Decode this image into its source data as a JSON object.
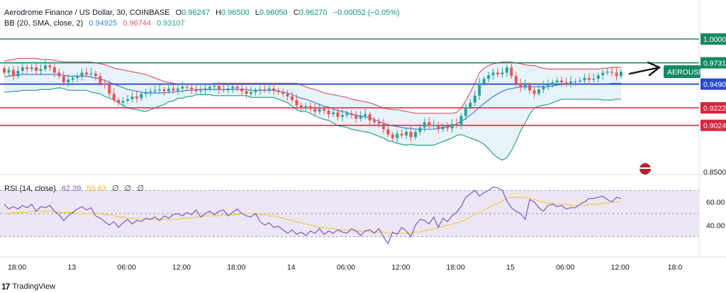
{
  "header": {
    "symbol_line": "Aerodrome Finance / US Dollar, 30, COINBASE",
    "ohlc": [
      {
        "k": "O",
        "v": "0.96247"
      },
      {
        "k": "H",
        "v": "0.96500"
      },
      {
        "k": "L",
        "v": "0.96050"
      },
      {
        "k": "C",
        "v": "0.96270"
      }
    ],
    "change": "−0.00052 (−0.05%)",
    "bb_label": "BB (20, SMA, close, 2)",
    "bb_values": [
      "0.94925",
      "0.96744",
      "0.93107"
    ],
    "rsi_label": "RSI (14, close)",
    "rsi_values": [
      "62.39",
      "59.63",
      "∅",
      "∅",
      "∅"
    ]
  },
  "watermark": "TradingView",
  "colors": {
    "up": "#26a69a",
    "down": "#ef5350",
    "bb_upper": "#e05c67",
    "bb_lower": "#23a48a",
    "bb_basis": "#3e7fd8",
    "bb_fill": "#e6f1f8",
    "resistance": "#138a63",
    "pivot": "#2b4acb",
    "support": "#d7263d",
    "rsi": "#7e57c2",
    "rsi_ma": "#f5c842",
    "rsi_band": "#ece6f6"
  },
  "chart_data": {
    "type": "candlestick",
    "price_axis": {
      "min": 0.85,
      "max": 1.0,
      "ticks": [
        "0.8500"
      ]
    },
    "time_axis": {
      "labels": [
        "18:00",
        "13",
        "06:00",
        "12:00",
        "18:00",
        "14",
        "06:00",
        "12:00",
        "18:00",
        "15",
        "06:00",
        "12:00",
        "18:0"
      ],
      "label_index": [
        0,
        12,
        24,
        36,
        48,
        60,
        72,
        84,
        96,
        108,
        120,
        132,
        144
      ]
    },
    "levels": [
      {
        "label": "1.0000",
        "value": 1.0,
        "role": "resistance"
      },
      {
        "label": "0.9731",
        "value": 0.9731,
        "role": "resistance"
      },
      {
        "label": "0.9490",
        "value": 0.949,
        "role": "pivot"
      },
      {
        "label": "0.9222",
        "value": 0.9222,
        "role": "support"
      },
      {
        "label": "0.9024",
        "value": 0.9024,
        "role": "support"
      }
    ],
    "annotation": "AEROUSD",
    "candles_close": [
      0.962,
      0.965,
      0.958,
      0.964,
      0.968,
      0.966,
      0.968,
      0.964,
      0.966,
      0.97,
      0.968,
      0.962,
      0.958,
      0.951,
      0.954,
      0.956,
      0.958,
      0.962,
      0.96,
      0.961,
      0.958,
      0.95,
      0.948,
      0.938,
      0.931,
      0.928,
      0.93,
      0.932,
      0.935,
      0.933,
      0.938,
      0.94,
      0.941,
      0.942,
      0.943,
      0.941,
      0.944,
      0.942,
      0.944,
      0.946,
      0.945,
      0.943,
      0.941,
      0.942,
      0.944,
      0.946,
      0.947,
      0.943,
      0.942,
      0.944,
      0.946,
      0.944,
      0.941,
      0.938,
      0.94,
      0.942,
      0.943,
      0.942,
      0.944,
      0.942,
      0.94,
      0.938,
      0.935,
      0.931,
      0.925,
      0.922,
      0.924,
      0.921,
      0.918,
      0.921,
      0.919,
      0.915,
      0.917,
      0.912,
      0.914,
      0.916,
      0.914,
      0.91,
      0.913,
      0.915,
      0.908,
      0.906,
      0.904,
      0.898,
      0.892,
      0.888,
      0.893,
      0.891,
      0.895,
      0.889,
      0.895,
      0.9,
      0.906,
      0.902,
      0.903,
      0.898,
      0.901,
      0.899,
      0.904,
      0.902,
      0.913,
      0.923,
      0.928,
      0.936,
      0.95,
      0.955,
      0.959,
      0.962,
      0.96,
      0.962,
      0.968,
      0.958,
      0.95,
      0.945,
      0.948,
      0.942,
      0.938,
      0.943,
      0.947,
      0.948,
      0.951,
      0.953,
      0.951,
      0.949,
      0.952,
      0.952,
      0.953,
      0.956,
      0.954,
      0.955,
      0.959,
      0.962,
      0.963,
      0.962,
      0.958,
      0.963
    ],
    "candles_open": [
      0.967,
      0.962,
      0.965,
      0.958,
      0.964,
      0.968,
      0.966,
      0.968,
      0.964,
      0.966,
      0.97,
      0.968,
      0.962,
      0.958,
      0.951,
      0.954,
      0.956,
      0.958,
      0.962,
      0.96,
      0.961,
      0.958,
      0.95,
      0.948,
      0.938,
      0.931,
      0.928,
      0.93,
      0.932,
      0.935,
      0.933,
      0.938,
      0.94,
      0.941,
      0.942,
      0.943,
      0.941,
      0.944,
      0.942,
      0.944,
      0.946,
      0.945,
      0.943,
      0.941,
      0.942,
      0.944,
      0.946,
      0.947,
      0.943,
      0.942,
      0.944,
      0.946,
      0.944,
      0.941,
      0.938,
      0.94,
      0.942,
      0.943,
      0.942,
      0.944,
      0.942,
      0.94,
      0.938,
      0.935,
      0.931,
      0.925,
      0.922,
      0.924,
      0.921,
      0.918,
      0.921,
      0.919,
      0.915,
      0.917,
      0.912,
      0.914,
      0.916,
      0.914,
      0.91,
      0.913,
      0.915,
      0.908,
      0.906,
      0.904,
      0.898,
      0.892,
      0.888,
      0.893,
      0.891,
      0.895,
      0.889,
      0.895,
      0.9,
      0.906,
      0.902,
      0.903,
      0.898,
      0.901,
      0.899,
      0.904,
      0.902,
      0.913,
      0.923,
      0.928,
      0.936,
      0.95,
      0.955,
      0.959,
      0.962,
      0.96,
      0.962,
      0.968,
      0.958,
      0.95,
      0.945,
      0.948,
      0.942,
      0.938,
      0.943,
      0.947,
      0.948,
      0.951,
      0.953,
      0.951,
      0.949,
      0.952,
      0.952,
      0.953,
      0.956,
      0.954,
      0.955,
      0.959,
      0.962,
      0.963,
      0.962,
      0.958
    ],
    "bb_upper": [
      0.975,
      0.976,
      0.977,
      0.978,
      0.978,
      0.978,
      0.978,
      0.978,
      0.977,
      0.977,
      0.977,
      0.976,
      0.975,
      0.974,
      0.974,
      0.974,
      0.974,
      0.974,
      0.974,
      0.974,
      0.973,
      0.972,
      0.971,
      0.969,
      0.967,
      0.966,
      0.965,
      0.964,
      0.963,
      0.962,
      0.961,
      0.96,
      0.958,
      0.956,
      0.954,
      0.952,
      0.951,
      0.95,
      0.949,
      0.949,
      0.949,
      0.949,
      0.949,
      0.949,
      0.949,
      0.949,
      0.95,
      0.95,
      0.95,
      0.95,
      0.95,
      0.95,
      0.95,
      0.95,
      0.95,
      0.95,
      0.95,
      0.95,
      0.95,
      0.95,
      0.95,
      0.95,
      0.95,
      0.95,
      0.95,
      0.948,
      0.946,
      0.944,
      0.943,
      0.941,
      0.939,
      0.938,
      0.937,
      0.936,
      0.935,
      0.934,
      0.932,
      0.931,
      0.93,
      0.929,
      0.928,
      0.926,
      0.924,
      0.922,
      0.921,
      0.92,
      0.92,
      0.919,
      0.918,
      0.917,
      0.916,
      0.916,
      0.916,
      0.916,
      0.916,
      0.916,
      0.916,
      0.916,
      0.916,
      0.917,
      0.922,
      0.93,
      0.94,
      0.95,
      0.962,
      0.967,
      0.97,
      0.972,
      0.973,
      0.974,
      0.974,
      0.974,
      0.973,
      0.972,
      0.971,
      0.97,
      0.97,
      0.968,
      0.967,
      0.966,
      0.966,
      0.966,
      0.966,
      0.966,
      0.966,
      0.966,
      0.966,
      0.966,
      0.966,
      0.966,
      0.966,
      0.967,
      0.967,
      0.968,
      0.968,
      0.968
    ],
    "bb_basis": [
      0.957,
      0.958,
      0.959,
      0.959,
      0.96,
      0.96,
      0.96,
      0.96,
      0.96,
      0.96,
      0.96,
      0.96,
      0.96,
      0.959,
      0.958,
      0.958,
      0.958,
      0.958,
      0.958,
      0.957,
      0.956,
      0.955,
      0.953,
      0.951,
      0.949,
      0.947,
      0.945,
      0.943,
      0.942,
      0.941,
      0.94,
      0.939,
      0.939,
      0.939,
      0.939,
      0.939,
      0.94,
      0.94,
      0.941,
      0.941,
      0.942,
      0.942,
      0.943,
      0.943,
      0.943,
      0.943,
      0.943,
      0.943,
      0.943,
      0.943,
      0.943,
      0.943,
      0.943,
      0.943,
      0.942,
      0.942,
      0.942,
      0.942,
      0.942,
      0.942,
      0.941,
      0.94,
      0.939,
      0.937,
      0.935,
      0.933,
      0.932,
      0.93,
      0.928,
      0.926,
      0.924,
      0.923,
      0.921,
      0.919,
      0.918,
      0.917,
      0.915,
      0.914,
      0.913,
      0.912,
      0.911,
      0.909,
      0.907,
      0.905,
      0.903,
      0.902,
      0.901,
      0.9,
      0.899,
      0.899,
      0.898,
      0.898,
      0.898,
      0.898,
      0.898,
      0.899,
      0.9,
      0.901,
      0.902,
      0.904,
      0.907,
      0.91,
      0.914,
      0.918,
      0.923,
      0.927,
      0.931,
      0.935,
      0.938,
      0.941,
      0.943,
      0.944,
      0.945,
      0.946,
      0.946,
      0.946,
      0.946,
      0.946,
      0.946,
      0.946,
      0.947,
      0.948,
      0.949,
      0.949,
      0.949,
      0.949,
      0.949,
      0.949,
      0.949,
      0.949,
      0.949,
      0.949,
      0.949,
      0.95,
      0.95,
      0.95
    ],
    "bb_lower": [
      0.94,
      0.94,
      0.941,
      0.941,
      0.942,
      0.942,
      0.942,
      0.942,
      0.943,
      0.943,
      0.943,
      0.944,
      0.945,
      0.944,
      0.942,
      0.942,
      0.942,
      0.942,
      0.942,
      0.94,
      0.939,
      0.938,
      0.935,
      0.933,
      0.931,
      0.928,
      0.925,
      0.922,
      0.921,
      0.92,
      0.919,
      0.918,
      0.92,
      0.922,
      0.924,
      0.926,
      0.929,
      0.93,
      0.933,
      0.933,
      0.935,
      0.935,
      0.937,
      0.937,
      0.937,
      0.937,
      0.936,
      0.936,
      0.936,
      0.936,
      0.936,
      0.936,
      0.936,
      0.936,
      0.934,
      0.934,
      0.934,
      0.934,
      0.934,
      0.934,
      0.932,
      0.93,
      0.928,
      0.924,
      0.92,
      0.918,
      0.918,
      0.916,
      0.913,
      0.911,
      0.909,
      0.908,
      0.905,
      0.902,
      0.901,
      0.9,
      0.898,
      0.897,
      0.896,
      0.895,
      0.894,
      0.892,
      0.89,
      0.888,
      0.885,
      0.884,
      0.882,
      0.881,
      0.88,
      0.881,
      0.88,
      0.88,
      0.88,
      0.88,
      0.88,
      0.882,
      0.884,
      0.886,
      0.888,
      0.891,
      0.892,
      0.89,
      0.888,
      0.886,
      0.884,
      0.881,
      0.876,
      0.87,
      0.866,
      0.863,
      0.866,
      0.874,
      0.884,
      0.896,
      0.905,
      0.915,
      0.922,
      0.924,
      0.925,
      0.926,
      0.928,
      0.93,
      0.932,
      0.932,
      0.932,
      0.932,
      0.932,
      0.932,
      0.932,
      0.932,
      0.932,
      0.931,
      0.931,
      0.931,
      0.932,
      0.932
    ],
    "rsi": {
      "ticks": [
        "60.00",
        "40.00"
      ],
      "band": [
        30,
        70
      ],
      "range": [
        20,
        80
      ],
      "values": [
        58,
        54,
        56,
        54,
        57,
        55,
        58,
        52,
        56,
        55,
        57,
        52,
        49,
        44,
        48,
        51,
        54,
        56,
        53,
        55,
        48,
        46,
        43,
        40,
        43,
        38,
        42,
        45,
        41,
        44,
        43,
        46,
        45,
        47,
        44,
        48,
        46,
        49,
        50,
        48,
        51,
        49,
        53,
        47,
        50,
        52,
        49,
        52,
        53,
        48,
        51,
        54,
        50,
        48,
        47,
        50,
        43,
        40,
        42,
        38,
        39,
        36,
        33,
        36,
        32,
        34,
        31,
        35,
        33,
        37,
        32,
        35,
        33,
        36,
        34,
        33,
        37,
        35,
        31,
        35,
        36,
        33,
        37,
        30,
        24,
        34,
        32,
        38,
        35,
        30,
        40,
        45,
        44,
        41,
        47,
        38,
        46,
        43,
        48,
        51,
        56,
        64,
        67,
        70,
        65,
        68,
        70,
        73,
        72,
        70,
        61,
        55,
        52,
        50,
        45,
        62,
        60,
        55,
        52,
        57,
        58,
        56,
        57,
        54,
        55,
        55,
        58,
        60,
        63,
        63,
        64,
        65,
        62,
        60,
        64,
        63
      ],
      "ma": [
        50,
        50,
        51,
        51,
        51,
        51,
        52,
        52,
        52,
        52,
        52,
        52,
        51,
        51,
        51,
        51,
        50,
        50,
        50,
        50,
        50,
        50,
        49,
        49,
        48,
        47,
        47,
        46,
        46,
        45,
        45,
        45,
        45,
        45,
        45,
        45,
        45,
        45,
        45,
        46,
        46,
        46,
        47,
        47,
        48,
        48,
        48,
        48,
        49,
        49,
        49,
        49,
        50,
        50,
        50,
        50,
        49,
        49,
        48,
        48,
        47,
        46,
        45,
        44,
        43,
        42,
        41,
        40,
        39,
        38,
        38,
        37,
        37,
        36,
        36,
        36,
        35,
        35,
        35,
        35,
        34,
        34,
        34,
        34,
        33,
        33,
        33,
        33,
        33,
        33,
        34,
        34,
        35,
        36,
        37,
        38,
        39,
        40,
        41,
        42,
        43,
        45,
        47,
        49,
        51,
        53,
        55,
        57,
        59,
        61,
        63,
        64,
        64,
        64,
        64,
        63,
        62,
        61,
        60,
        59,
        59,
        58,
        58,
        58,
        57,
        57,
        57,
        57,
        58,
        58,
        58,
        59,
        59,
        60,
        60,
        60
      ]
    }
  }
}
